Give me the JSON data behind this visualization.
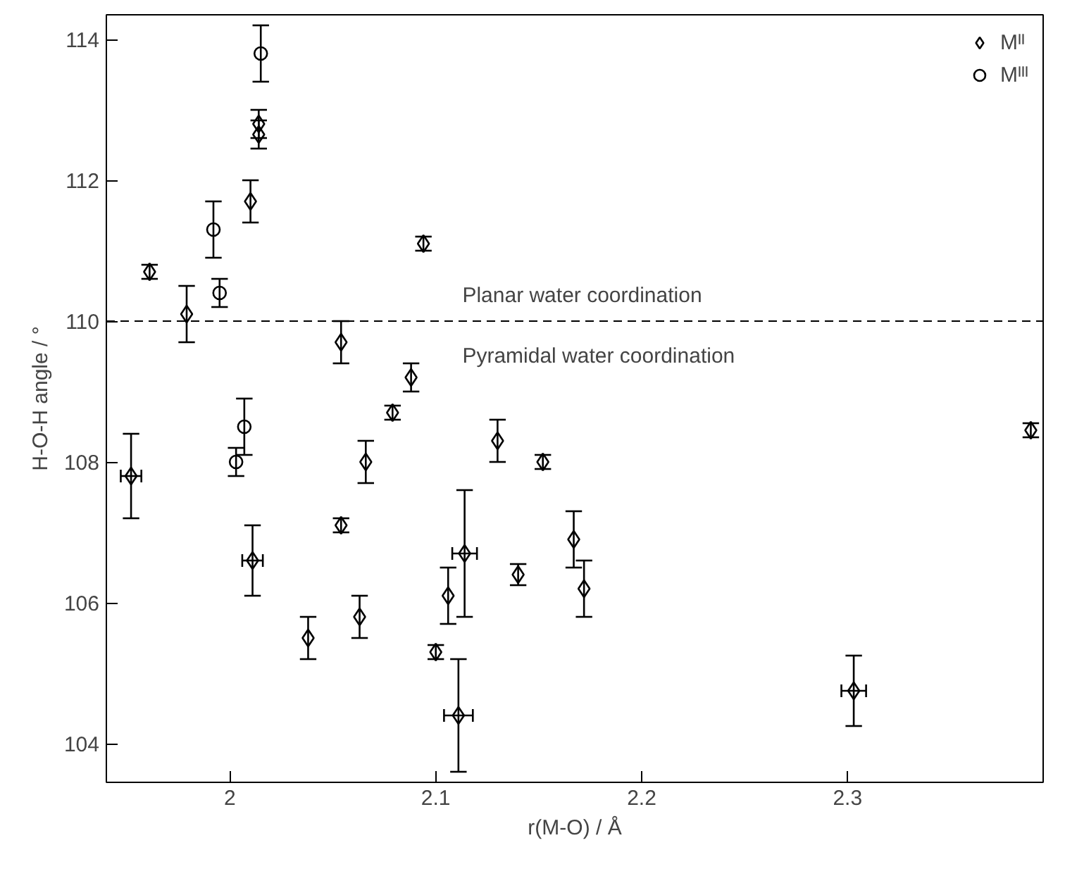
{
  "chart_data": {
    "type": "scatter",
    "xlabel": "r(M-O) / Å",
    "ylabel": "H-O-H angle / °",
    "xlim": [
      1.94,
      2.395
    ],
    "ylim": [
      103.45,
      114.35
    ],
    "xticks": [
      2.0,
      2.1,
      2.2,
      2.3
    ],
    "yticks": [
      104,
      106,
      108,
      110,
      112,
      114
    ],
    "grid": false,
    "legend": "top right",
    "ref_lines": [
      {
        "axis": "y",
        "value": 110,
        "line_style": "dashed",
        "color": "#000000"
      }
    ],
    "annotations": [
      "Planar water coordination",
      "Pyramidal water coordination"
    ],
    "series": [
      {
        "name": "Mᴵᴵ",
        "color": "#000000",
        "marker": "diamond",
        "x": [
          1.952,
          1.961,
          1.979,
          2.014,
          2.014,
          2.01,
          2.054,
          2.088,
          2.079,
          2.094,
          2.011,
          2.038,
          2.054,
          2.063,
          2.066,
          2.13,
          2.152,
          2.114,
          2.14,
          2.106,
          2.1,
          2.111,
          2.167,
          2.172,
          2.303,
          2.389
        ],
        "values": [
          107.8,
          110.7,
          110.1,
          112.8,
          112.65,
          111.7,
          109.7,
          109.2,
          108.7,
          111.1,
          106.6,
          105.5,
          107.1,
          105.8,
          108.0,
          108.3,
          108.0,
          106.7,
          106.4,
          106.1,
          105.3,
          104.4,
          106.9,
          106.2,
          104.75,
          108.45
        ],
        "errors": [
          0.6,
          0.1,
          0.4,
          0.2,
          0.2,
          0.3,
          0.3,
          0.2,
          0.1,
          0.1,
          0.5,
          0.3,
          0.1,
          0.3,
          0.3,
          0.3,
          0.1,
          [
            105.8,
            107.6
          ],
          0.15,
          0.4,
          0.1,
          0.8,
          0.4,
          0.4,
          0.5,
          0.1
        ],
        "xerrors": [
          0.005,
          null,
          null,
          null,
          null,
          null,
          null,
          null,
          null,
          null,
          0.005,
          null,
          null,
          null,
          null,
          null,
          null,
          0.006,
          null,
          null,
          null,
          0.007,
          null,
          null,
          0.006,
          null
        ]
      },
      {
        "name": "Mᴵᴵᴵ",
        "color": "#000000",
        "marker": "circle",
        "x": [
          1.992,
          1.995,
          2.015,
          2.007,
          2.003
        ],
        "values": [
          111.3,
          110.4,
          113.8,
          108.5,
          108.0
        ],
        "errors": [
          0.4,
          0.2,
          0.4,
          0.4,
          0.2
        ]
      }
    ]
  }
}
